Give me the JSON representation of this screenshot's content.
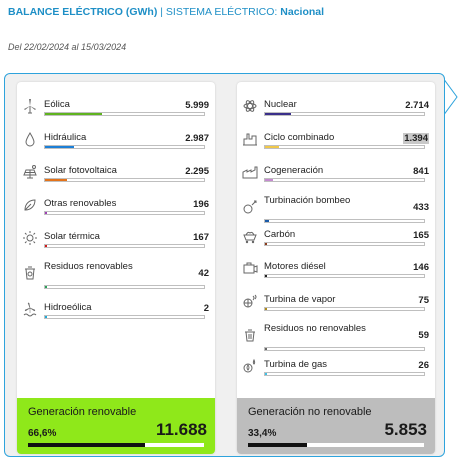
{
  "header": {
    "title": "BALANCE ELÉCTRICO (GWh)",
    "separator": "|",
    "system_label": "SISTEMA ELÉCTRICO:",
    "system_value": "Nacional"
  },
  "period": "Del 22/02/2024 al 15/03/2024",
  "renewable": {
    "items": [
      {
        "label": "Eólica",
        "value": "5.999",
        "fraction": 0.36,
        "color": "#5fb31f",
        "icon": "wind-turbine-icon"
      },
      {
        "label": "Hidráulica",
        "value": "2.987",
        "fraction": 0.18,
        "color": "#1c7fd6",
        "icon": "water-drop-icon"
      },
      {
        "label": "Solar fotovoltaica",
        "value": "2.295",
        "fraction": 0.14,
        "color": "#e3731a",
        "icon": "solar-panel-icon"
      },
      {
        "label": "Otras renovables",
        "value": "196",
        "fraction": 0.012,
        "color": "#9c3fb3",
        "icon": "leaf-icon"
      },
      {
        "label": "Solar térmica",
        "value": "167",
        "fraction": 0.01,
        "color": "#d01a1a",
        "icon": "sun-icon"
      },
      {
        "label": "Residuos renovables",
        "value": "42",
        "fraction": 0.004,
        "color": "#2aa05a",
        "icon": "recycle-bin-icon"
      },
      {
        "label": "Hidroeólica",
        "value": "2",
        "fraction": 0.003,
        "color": "#1fa9d6",
        "icon": "hydro-wind-icon"
      }
    ],
    "footer": {
      "title": "Generación renovable",
      "percent": "66,6%",
      "total": "11.688",
      "fraction": 0.666,
      "color": "#8fe81a"
    }
  },
  "non_renewable": {
    "items": [
      {
        "label": "Nuclear",
        "value": "2.714",
        "fraction": 0.165,
        "color": "#3a2f8a",
        "icon": "atom-icon",
        "highlight": false
      },
      {
        "label": "Ciclo combinado",
        "value": "1.394",
        "fraction": 0.085,
        "color": "#f0c84a",
        "icon": "power-plant-icon",
        "highlight": true
      },
      {
        "label": "Cogeneración",
        "value": "841",
        "fraction": 0.051,
        "color": "#c58ad0",
        "icon": "factory-icon",
        "highlight": false
      },
      {
        "label": "Turbinación bombeo",
        "value": "433",
        "fraction": 0.026,
        "color": "#1a5aa8",
        "icon": "pump-icon",
        "highlight": false
      },
      {
        "label": "Carbón",
        "value": "165",
        "fraction": 0.01,
        "color": "#8a3a1a",
        "icon": "coal-cart-icon",
        "highlight": false
      },
      {
        "label": "Motores diésel",
        "value": "146",
        "fraction": 0.009,
        "color": "#222222",
        "icon": "engine-icon",
        "highlight": false
      },
      {
        "label": "Turbina de vapor",
        "value": "75",
        "fraction": 0.005,
        "color": "#b08a1a",
        "icon": "steam-turbine-icon",
        "highlight": false
      },
      {
        "label": "Residuos no renovables",
        "value": "59",
        "fraction": 0.004,
        "color": "#666666",
        "icon": "trash-icon",
        "highlight": false
      },
      {
        "label": "Turbina de gas",
        "value": "26",
        "fraction": 0.003,
        "color": "#3fc1e6",
        "icon": "gas-turbine-icon",
        "highlight": false
      }
    ],
    "footer": {
      "title": "Generación no renovable",
      "percent": "33,4%",
      "total": "5.853",
      "fraction": 0.334,
      "color": "#bdbdbd"
    }
  }
}
